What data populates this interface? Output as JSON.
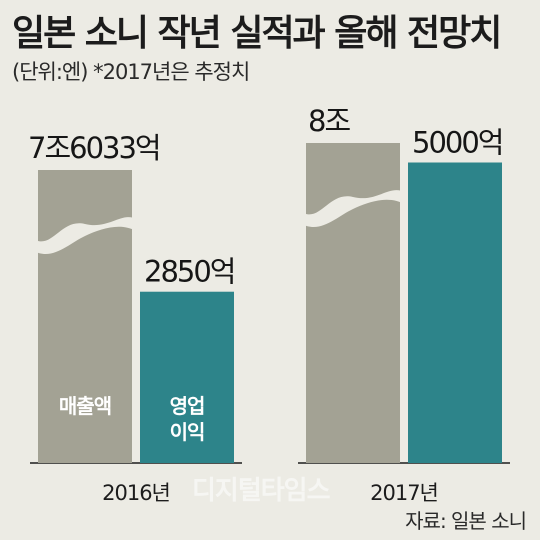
{
  "title": "일본 소니 작년 실적과 올해 전망치",
  "subtitle": "(단위:엔) *2017년은 추정치",
  "source": "자료: 일본 소니",
  "watermark": "디지털타임스",
  "colors": {
    "revenue": "#a3a294",
    "profit": "#2d848a",
    "background": "#ecebe4"
  },
  "chart_data": {
    "type": "bar",
    "categories": [
      "2016년",
      "2017년"
    ],
    "axis_break": true,
    "series": [
      {
        "name": "매출액",
        "values": [
          76033,
          80000
        ],
        "data_labels": [
          "7조6033억",
          "8조"
        ]
      },
      {
        "name": "영업이익",
        "values": [
          2850,
          5000
        ],
        "data_labels": [
          "2850억",
          "5000억"
        ]
      }
    ],
    "in_bar_labels": [
      "매출액",
      "영업\n이익"
    ],
    "unit": "억 엔"
  }
}
